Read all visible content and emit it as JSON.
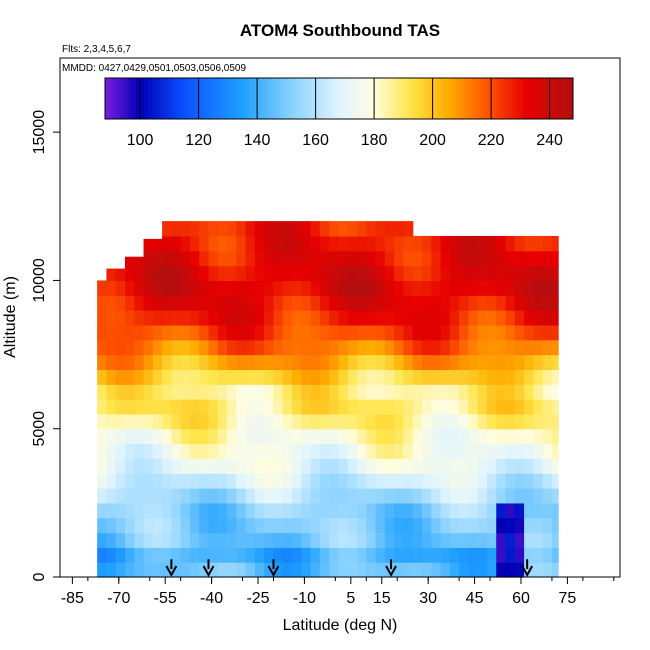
{
  "chart_data": {
    "type": "heatmap",
    "title": "ATOM4 Southbound TAS",
    "subtitle_flights": "Flts: 2,3,4,5,6,7",
    "subtitle_dates": "MMDD: 0427,0429,0501,0503,0506,0509",
    "xlabel": "Latitude (deg N)",
    "ylabel": "Altitude (m)",
    "xlim": [
      -89,
      92
    ],
    "ylim": [
      0,
      17500
    ],
    "x_ticks": [
      -85,
      -70,
      -55,
      -40,
      -25,
      -10,
      5,
      15,
      30,
      45,
      60,
      75
    ],
    "x_tick_labels": [
      "-85",
      "-70",
      "-55",
      "-40",
      "-25",
      "-10",
      "5",
      "15",
      "30",
      "45",
      "60",
      "75"
    ],
    "y_ticks": [
      0,
      5000,
      10000,
      15000
    ],
    "y_tick_labels": [
      "0",
      "5000",
      "10000",
      "15000"
    ],
    "colorbar": {
      "min": 88,
      "max": 248,
      "ticks": [
        100,
        120,
        140,
        160,
        180,
        200,
        220,
        240
      ],
      "tick_labels": [
        "100",
        "120",
        "140",
        "160",
        "180",
        "200",
        "220",
        "240"
      ],
      "colors": [
        "#7b1fe0",
        "#0000b4",
        "#0a50ff",
        "#1fa0ff",
        "#8ad2ff",
        "#e0f4ff",
        "#fffde0",
        "#ffe64d",
        "#ffae00",
        "#ff5a00",
        "#e60000",
        "#b21010"
      ],
      "stops": [
        88,
        100,
        115,
        135,
        152,
        168,
        180,
        192,
        205,
        218,
        232,
        248
      ]
    },
    "grid": false,
    "lat_range": [
      -77,
      72
    ],
    "altitude_profile": [
      {
        "alt": 250,
        "tas": 145
      },
      {
        "alt": 750,
        "tas": 140
      },
      {
        "alt": 1250,
        "tas": 148
      },
      {
        "alt": 1750,
        "tas": 150
      },
      {
        "alt": 2250,
        "tas": 152
      },
      {
        "alt": 2750,
        "tas": 158
      },
      {
        "alt": 3250,
        "tas": 165
      },
      {
        "alt": 3750,
        "tas": 172
      },
      {
        "alt": 4250,
        "tas": 176
      },
      {
        "alt": 4750,
        "tas": 180
      },
      {
        "alt": 5250,
        "tas": 186
      },
      {
        "alt": 5750,
        "tas": 190
      },
      {
        "alt": 6250,
        "tas": 188
      },
      {
        "alt": 6750,
        "tas": 196
      },
      {
        "alt": 7250,
        "tas": 206
      },
      {
        "alt": 7750,
        "tas": 215
      },
      {
        "alt": 8250,
        "tas": 222
      },
      {
        "alt": 8750,
        "tas": 228
      },
      {
        "alt": 9250,
        "tas": 232
      },
      {
        "alt": 9750,
        "tas": 235
      },
      {
        "alt": 10250,
        "tas": 234
      },
      {
        "alt": 10750,
        "tas": 232
      },
      {
        "alt": 11250,
        "tas": 230
      },
      {
        "alt": 11750,
        "tas": 228
      }
    ],
    "low_speed_patches": [
      {
        "lat_min": 52,
        "lat_max": 62,
        "alt_min": 0,
        "alt_max": 2500,
        "tas": 100
      }
    ],
    "top_envelope": [
      {
        "lat": -77,
        "alt": 10000
      },
      {
        "lat": -73,
        "alt": 10400
      },
      {
        "lat": -67,
        "alt": 10800
      },
      {
        "lat": -62,
        "alt": 11400
      },
      {
        "lat": -56,
        "alt": 12000
      },
      {
        "lat": 22,
        "alt": 12000
      },
      {
        "lat": 24,
        "alt": 11500
      },
      {
        "lat": 72,
        "alt": 11500
      }
    ],
    "flight_start_arrows_lat": [
      -53,
      -41,
      -20,
      18,
      62
    ]
  }
}
